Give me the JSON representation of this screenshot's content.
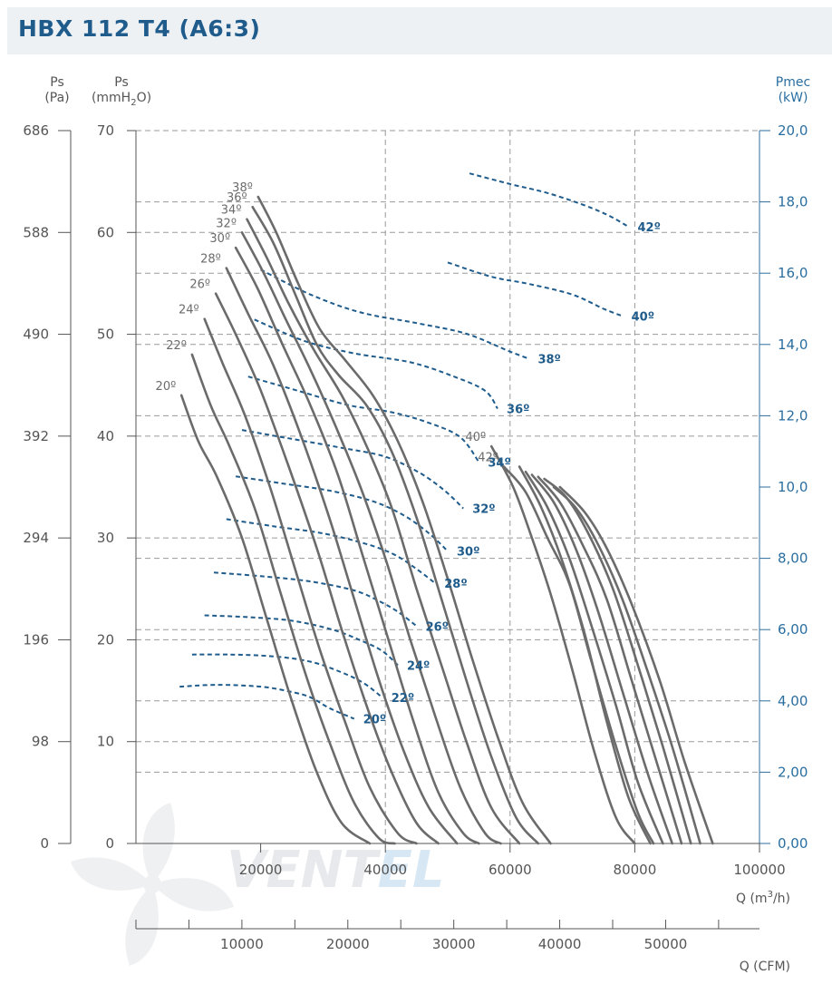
{
  "header": {
    "title": "HBX 112 T4 (A6:3)"
  },
  "logo": {
    "text": "VENTEL"
  },
  "colors": {
    "ps_curve": "#6b6b6b",
    "power_curve": "#1f5c8c",
    "title": "#1f5c8c",
    "title_bar": "#eef1f4"
  },
  "chart_data": {
    "type": "line",
    "title": "HBX 112 T4 (A6:3)",
    "grid": true,
    "axes": {
      "left_pa": {
        "label": "Ps",
        "unit": "(Pa)",
        "ticks": [
          "0",
          "98",
          "196",
          "294",
          "392",
          "490",
          "588",
          "686"
        ]
      },
      "left_mmh2o": {
        "label": "Ps",
        "unit_pre": "(mmH",
        "unit_sub": "2",
        "unit_post": "O)",
        "range": [
          0,
          70
        ],
        "ticks": [
          "0",
          "10",
          "20",
          "30",
          "40",
          "50",
          "60",
          "70"
        ]
      },
      "right_kw": {
        "label": "Pmec",
        "unit": "(kW)",
        "range": [
          0,
          20
        ],
        "ticks": [
          "0,00",
          "2,00",
          "4,00",
          "6,00",
          "8,00",
          "10,0",
          "12,0",
          "14,0",
          "16,0",
          "18,0",
          "20,0"
        ]
      },
      "x_m3h": {
        "label_pre": "Q (m",
        "label_sup": "3",
        "label_post": "/h)",
        "range": [
          0,
          100000
        ],
        "ticks": [
          "20000",
          "40000",
          "60000",
          "80000",
          "100000"
        ]
      },
      "x_cfm": {
        "label": "Q (CFM)",
        "ticks": [
          "10000",
          "20000",
          "30000",
          "40000",
          "50000"
        ]
      }
    },
    "pressure_series": [
      {
        "name": "20º",
        "points": [
          [
            7300,
            44
          ],
          [
            10000,
            39.5
          ],
          [
            13000,
            36
          ],
          [
            17000,
            30
          ],
          [
            21000,
            22
          ],
          [
            25000,
            14
          ],
          [
            29000,
            7
          ],
          [
            33000,
            2
          ],
          [
            37500,
            0
          ]
        ]
      },
      {
        "name": "22º",
        "points": [
          [
            9000,
            48
          ],
          [
            12000,
            43
          ],
          [
            15000,
            39
          ],
          [
            19000,
            33
          ],
          [
            23000,
            25
          ],
          [
            27000,
            17
          ],
          [
            31000,
            10
          ],
          [
            35000,
            4
          ],
          [
            39000,
            0.5
          ],
          [
            41500,
            0
          ]
        ]
      },
      {
        "name": "24º",
        "points": [
          [
            11000,
            51.5
          ],
          [
            14000,
            47
          ],
          [
            17500,
            42
          ],
          [
            21500,
            35
          ],
          [
            25500,
            27
          ],
          [
            29500,
            19
          ],
          [
            33500,
            12
          ],
          [
            37500,
            5.5
          ],
          [
            42000,
            1
          ],
          [
            45000,
            0
          ]
        ]
      },
      {
        "name": "26º",
        "points": [
          [
            12800,
            54
          ],
          [
            16000,
            50
          ],
          [
            20000,
            44.5
          ],
          [
            24500,
            37
          ],
          [
            29000,
            29
          ],
          [
            33000,
            21
          ],
          [
            37000,
            13.5
          ],
          [
            41000,
            7
          ],
          [
            45000,
            2
          ],
          [
            48500,
            0
          ]
        ]
      },
      {
        "name": "28º",
        "points": [
          [
            14500,
            56.5
          ],
          [
            18000,
            52
          ],
          [
            22000,
            47
          ],
          [
            26500,
            40
          ],
          [
            31000,
            32
          ],
          [
            35000,
            24
          ],
          [
            39000,
            16
          ],
          [
            43000,
            9
          ],
          [
            47000,
            3.5
          ],
          [
            51500,
            0
          ]
        ]
      },
      {
        "name": "30º",
        "points": [
          [
            16000,
            58.5
          ],
          [
            19500,
            54.5
          ],
          [
            23500,
            49
          ],
          [
            28000,
            43
          ],
          [
            32500,
            36
          ],
          [
            36500,
            28
          ],
          [
            40500,
            20
          ],
          [
            44500,
            12
          ],
          [
            48500,
            5
          ],
          [
            52500,
            1
          ],
          [
            55000,
            0
          ]
        ]
      },
      {
        "name": "32º",
        "points": [
          [
            17000,
            60
          ],
          [
            20500,
            56
          ],
          [
            24000,
            51.5
          ],
          [
            28000,
            46.5
          ],
          [
            32000,
            41
          ],
          [
            36000,
            35
          ],
          [
            40000,
            28
          ],
          [
            44000,
            20
          ],
          [
            48000,
            12.5
          ],
          [
            52000,
            5.5
          ],
          [
            56000,
            1
          ],
          [
            58500,
            0
          ]
        ]
      },
      {
        "name": "34º",
        "points": [
          [
            17800,
            61.3
          ],
          [
            21000,
            57.5
          ],
          [
            24500,
            53
          ],
          [
            28500,
            48.5
          ],
          [
            33000,
            44
          ],
          [
            37000,
            39
          ],
          [
            41000,
            33
          ],
          [
            45000,
            25
          ],
          [
            49000,
            17.5
          ],
          [
            53000,
            10
          ],
          [
            57000,
            3.5
          ],
          [
            61500,
            0
          ]
        ]
      },
      {
        "name": "36º",
        "points": [
          [
            18700,
            62.5
          ],
          [
            22000,
            59
          ],
          [
            25500,
            54
          ],
          [
            29000,
            49
          ],
          [
            32500,
            46
          ],
          [
            37000,
            43
          ],
          [
            41000,
            38.5
          ],
          [
            45000,
            32
          ],
          [
            49000,
            24
          ],
          [
            53000,
            16
          ],
          [
            57000,
            8.5
          ],
          [
            61000,
            2.5
          ],
          [
            64500,
            0
          ]
        ]
      },
      {
        "name": "38º",
        "points": [
          [
            19600,
            63.5
          ],
          [
            22500,
            60
          ],
          [
            26000,
            55
          ],
          [
            29500,
            50.5
          ],
          [
            33500,
            47.5
          ],
          [
            38000,
            44
          ],
          [
            42000,
            39.5
          ],
          [
            46000,
            33.5
          ],
          [
            50000,
            26
          ],
          [
            54000,
            18
          ],
          [
            58000,
            10.5
          ],
          [
            62000,
            4
          ],
          [
            66500,
            0
          ]
        ]
      },
      {
        "name": "40º",
        "points": [
          [
            57000,
            39
          ],
          [
            60500,
            35
          ],
          [
            63500,
            30
          ],
          [
            66500,
            24.5
          ],
          [
            70000,
            17
          ],
          [
            73500,
            9
          ],
          [
            77000,
            2.5
          ],
          [
            80000,
            0
          ]
        ]
      },
      {
        "name": "42º",
        "points": [
          [
            59000,
            37
          ],
          [
            62500,
            34.5
          ],
          [
            66000,
            30
          ],
          [
            69500,
            25.5
          ],
          [
            73000,
            18
          ],
          [
            77000,
            9.5
          ],
          [
            80500,
            3
          ],
          [
            83000,
            0
          ]
        ]
      }
    ],
    "pressure_extra_curves": [
      {
        "points": [
          [
            61500,
            37
          ],
          [
            65000,
            33
          ],
          [
            68500,
            27.5
          ],
          [
            72000,
            20.5
          ],
          [
            75500,
            12
          ],
          [
            79000,
            4.5
          ],
          [
            82500,
            0
          ]
        ]
      },
      {
        "points": [
          [
            62500,
            36.5
          ],
          [
            66000,
            33
          ],
          [
            69500,
            28
          ],
          [
            73000,
            21.5
          ],
          [
            77000,
            13.5
          ],
          [
            80500,
            6
          ],
          [
            84500,
            0
          ]
        ]
      },
      {
        "points": [
          [
            63500,
            36.2
          ],
          [
            67000,
            33.5
          ],
          [
            70500,
            29
          ],
          [
            74000,
            23
          ],
          [
            78000,
            15
          ],
          [
            82000,
            7
          ],
          [
            86000,
            0
          ]
        ]
      },
      {
        "points": [
          [
            64500,
            36
          ],
          [
            68000,
            33.5
          ],
          [
            71500,
            29.5
          ],
          [
            75500,
            24
          ],
          [
            79500,
            16
          ],
          [
            83500,
            8
          ],
          [
            87500,
            0
          ]
        ]
      },
      {
        "points": [
          [
            65500,
            35.8
          ],
          [
            69000,
            34
          ],
          [
            72500,
            30.5
          ],
          [
            76500,
            25
          ],
          [
            80500,
            17.5
          ],
          [
            84500,
            9.5
          ],
          [
            89000,
            0
          ]
        ]
      },
      {
        "points": [
          [
            67000,
            35
          ],
          [
            70500,
            33
          ],
          [
            74000,
            29.5
          ],
          [
            78000,
            24
          ],
          [
            82000,
            17
          ],
          [
            86000,
            9.5
          ],
          [
            90500,
            0
          ]
        ]
      },
      {
        "points": [
          [
            68000,
            35
          ],
          [
            72000,
            32.5
          ],
          [
            75500,
            29
          ],
          [
            79500,
            23.5
          ],
          [
            84000,
            16
          ],
          [
            88000,
            8
          ],
          [
            92500,
            0
          ]
        ]
      }
    ],
    "power_series": [
      {
        "name": "20º",
        "points": [
          [
            7000,
            4.4
          ],
          [
            13000,
            4.45
          ],
          [
            20000,
            4.4
          ],
          [
            25000,
            4.25
          ],
          [
            28000,
            4.1
          ],
          [
            31000,
            3.8
          ],
          [
            35000,
            3.5
          ]
        ]
      },
      {
        "name": "22º",
        "points": [
          [
            9000,
            5.3
          ],
          [
            15000,
            5.3
          ],
          [
            22000,
            5.25
          ],
          [
            28000,
            5.1
          ],
          [
            33000,
            4.8
          ],
          [
            36500,
            4.5
          ],
          [
            39500,
            4.1
          ]
        ]
      },
      {
        "name": "24º",
        "points": [
          [
            11000,
            6.4
          ],
          [
            18000,
            6.35
          ],
          [
            25000,
            6.25
          ],
          [
            31500,
            6.0
          ],
          [
            36000,
            5.7
          ],
          [
            39500,
            5.4
          ],
          [
            42000,
            5.0
          ]
        ]
      },
      {
        "name": "26º",
        "points": [
          [
            12500,
            7.6
          ],
          [
            20000,
            7.5
          ],
          [
            28000,
            7.35
          ],
          [
            35000,
            7.1
          ],
          [
            39000,
            6.8
          ],
          [
            42000,
            6.5
          ],
          [
            45000,
            6.1
          ]
        ]
      },
      {
        "name": "28º",
        "points": [
          [
            14500,
            9.1
          ],
          [
            22000,
            8.9
          ],
          [
            30000,
            8.7
          ],
          [
            37000,
            8.4
          ],
          [
            41500,
            8.1
          ],
          [
            45000,
            7.7
          ],
          [
            48000,
            7.3
          ]
        ]
      },
      {
        "name": "30º",
        "points": [
          [
            16000,
            10.3
          ],
          [
            23500,
            10.1
          ],
          [
            31000,
            9.9
          ],
          [
            38000,
            9.6
          ],
          [
            43000,
            9.2
          ],
          [
            47000,
            8.7
          ],
          [
            50000,
            8.2
          ]
        ]
      },
      {
        "name": "32º",
        "points": [
          [
            17000,
            11.6
          ],
          [
            25000,
            11.35
          ],
          [
            33000,
            11.1
          ],
          [
            40000,
            10.85
          ],
          [
            45500,
            10.4
          ],
          [
            49500,
            9.9
          ],
          [
            52500,
            9.4
          ]
        ]
      },
      {
        "name": "34º",
        "points": [
          [
            18000,
            13.1
          ],
          [
            26000,
            12.7
          ],
          [
            34000,
            12.3
          ],
          [
            41000,
            12.1
          ],
          [
            47000,
            11.8
          ],
          [
            52000,
            11.4
          ],
          [
            55000,
            10.7
          ]
        ]
      },
      {
        "name": "36º",
        "points": [
          [
            19000,
            14.7
          ],
          [
            27000,
            14.1
          ],
          [
            35000,
            13.75
          ],
          [
            44000,
            13.5
          ],
          [
            51000,
            13.1
          ],
          [
            56000,
            12.7
          ],
          [
            58000,
            12.2
          ]
        ]
      },
      {
        "name": "38º",
        "points": [
          [
            20000,
            16.1
          ],
          [
            28000,
            15.4
          ],
          [
            36000,
            14.9
          ],
          [
            45000,
            14.6
          ],
          [
            53000,
            14.3
          ],
          [
            60000,
            13.8
          ],
          [
            63000,
            13.6
          ]
        ]
      },
      {
        "name": "40º",
        "points": [
          [
            50000,
            16.3
          ],
          [
            57000,
            15.9
          ],
          [
            63000,
            15.7
          ],
          [
            70000,
            15.4
          ],
          [
            75000,
            15.0
          ],
          [
            78000,
            14.8
          ]
        ]
      },
      {
        "name": "42º",
        "points": [
          [
            53500,
            18.8
          ],
          [
            60000,
            18.5
          ],
          [
            66000,
            18.25
          ],
          [
            72000,
            17.9
          ],
          [
            76000,
            17.6
          ],
          [
            79000,
            17.3
          ]
        ]
      }
    ]
  }
}
